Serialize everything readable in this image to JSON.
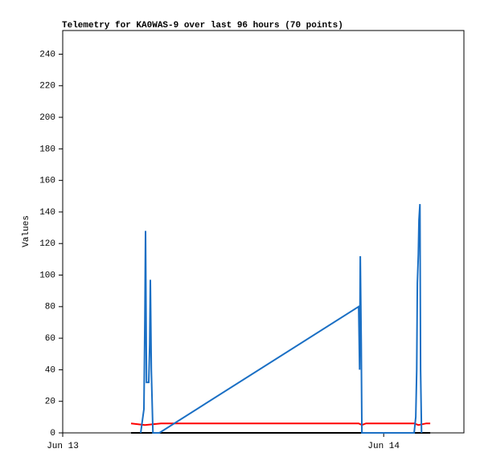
{
  "chart_data": {
    "type": "line",
    "title": "Telemetry for KA0WAS-9 over last 96 hours (70 points)",
    "y_label": "Values",
    "xlim": [
      0,
      1.25
    ],
    "xticks": [
      {
        "value": 0,
        "label": "Jun 13"
      },
      {
        "value": 1,
        "label": "Jun 14"
      }
    ],
    "ylim": [
      0,
      255
    ],
    "yticks": [
      0,
      20,
      40,
      60,
      80,
      100,
      120,
      140,
      160,
      180,
      200,
      220,
      240
    ],
    "series": [
      {
        "color": "#ff0000",
        "x": [
          0.213,
          0.256,
          0.306,
          0.922,
          0.932,
          0.945,
          1.095,
          1.108,
          1.133,
          1.145
        ],
        "values": [
          6,
          5,
          6,
          6,
          5,
          6,
          6,
          5,
          6,
          6
        ]
      },
      {
        "color": "#000000",
        "x": [
          0.213,
          1.145
        ],
        "values": [
          0,
          0
        ]
      },
      {
        "color": "#1a6fc4",
        "x": [
          0.243,
          0.253,
          0.256,
          0.258,
          0.261,
          0.268,
          0.271,
          0.273,
          0.276,
          0.281,
          0.301,
          0.922,
          0.925,
          0.927,
          0.93,
          0.932,
          1.095,
          1.1,
          1.103,
          1.105,
          1.108,
          1.11,
          1.113,
          1.115,
          1.118
        ],
        "values": [
          0,
          15,
          72,
          128,
          32,
          32,
          56,
          97,
          40,
          0,
          0,
          80,
          40,
          112,
          56,
          0,
          0,
          10,
          40,
          95,
          113,
          135,
          145,
          40,
          0
        ]
      }
    ]
  }
}
